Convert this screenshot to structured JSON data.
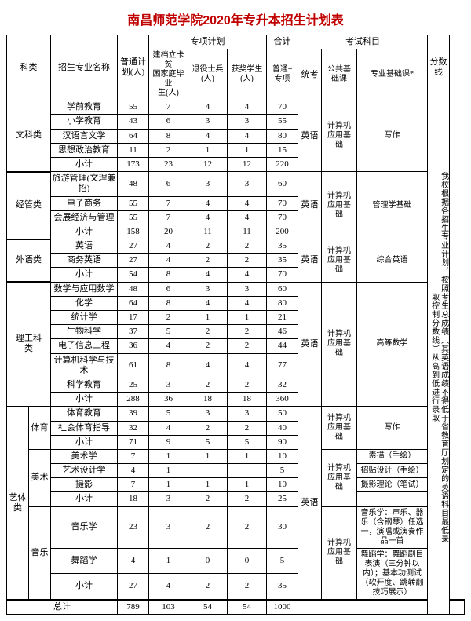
{
  "title": "南昌师范学院2020年专升本招生计划表",
  "headers": {
    "category": "科类",
    "major": "招生专业名称",
    "normal_plan": "普通计\n划(人)",
    "special_plan": "专项计划",
    "poor": "建档立卡贫\n困家庭毕业\n生(人)",
    "veteran": "退役士兵(人)",
    "award": "获奖学生(人)",
    "sum": "合计",
    "sum_sub": "普通+\n专项",
    "exam": "考试科目",
    "unified": "统考",
    "public": "公共基\n础课",
    "prof": "专业基础课*",
    "score": "分数线"
  },
  "score_note": "我校根据各招生专业计划，按照考生总成绩（其英语成绩不得低于省教育厅划定的英语科目最低录取控制分数线）从高到低进行录取",
  "subtotal_label": "小计",
  "total_label": "总计",
  "exam_unified": "英语",
  "exam_public": "计算机\n应用基\n础",
  "categories": [
    {
      "name": "文科类",
      "majors": [
        {
          "n": "学前教育",
          "v": [
            55,
            7,
            4,
            4,
            70
          ]
        },
        {
          "n": "小学教育",
          "v": [
            43,
            6,
            3,
            3,
            55
          ]
        },
        {
          "n": "汉语言文学",
          "v": [
            64,
            8,
            4,
            4,
            80
          ]
        },
        {
          "n": "思想政治教育",
          "v": [
            11,
            2,
            1,
            1,
            15
          ]
        }
      ],
      "subtotal": [
        173,
        23,
        12,
        12,
        220
      ],
      "exam_prof": "写作"
    },
    {
      "name": "经管类",
      "majors": [
        {
          "n": "旅游管理(文理兼招)",
          "v": [
            48,
            6,
            3,
            3,
            60
          ]
        },
        {
          "n": "电子商务",
          "v": [
            55,
            7,
            4,
            4,
            70
          ]
        },
        {
          "n": "会展经济与管理",
          "v": [
            55,
            7,
            4,
            4,
            70
          ]
        }
      ],
      "subtotal": [
        158,
        20,
        11,
        11,
        200
      ],
      "exam_prof": "管理学基础"
    },
    {
      "name": "外语类",
      "majors": [
        {
          "n": "英语",
          "v": [
            27,
            4,
            2,
            2,
            35
          ]
        },
        {
          "n": "商务英语",
          "v": [
            27,
            4,
            2,
            2,
            35
          ]
        }
      ],
      "subtotal": [
        54,
        8,
        4,
        4,
        70
      ],
      "exam_prof": "综合英语"
    },
    {
      "name": "理工科\n类",
      "majors": [
        {
          "n": "数学与应用数学",
          "v": [
            48,
            6,
            3,
            3,
            60
          ]
        },
        {
          "n": "化学",
          "v": [
            64,
            8,
            4,
            4,
            80
          ]
        },
        {
          "n": "统计学",
          "v": [
            17,
            2,
            1,
            1,
            21
          ]
        },
        {
          "n": "生物科学",
          "v": [
            37,
            5,
            2,
            2,
            46
          ]
        },
        {
          "n": "电子信息工程",
          "v": [
            36,
            4,
            2,
            2,
            44
          ]
        },
        {
          "n": "计算机科学与技术",
          "v": [
            61,
            8,
            4,
            4,
            77
          ]
        },
        {
          "n": "科学教育",
          "v": [
            25,
            3,
            2,
            2,
            32
          ]
        }
      ],
      "subtotal": [
        288,
        36,
        18,
        18,
        360
      ],
      "exam_prof": "高等数学"
    }
  ],
  "art": {
    "name": "艺体类",
    "groups": [
      {
        "sub": "体育",
        "majors": [
          {
            "n": "体育教育",
            "v": [
              39,
              5,
              3,
              3,
              50
            ]
          },
          {
            "n": "社会体育指导",
            "v": [
              32,
              4,
              2,
              2,
              40
            ]
          }
        ],
        "subtotal": [
          71,
          9,
          5,
          5,
          90
        ],
        "prof": "写作"
      },
      {
        "sub": "美术",
        "majors": [
          {
            "n": "美术学",
            "v": [
              7,
              1,
              1,
              1,
              10
            ],
            "prof": "素描（手绘）"
          },
          {
            "n": "艺术设计学",
            "v": [
              4,
              1,
              "",
              "",
              5
            ],
            "prof": "招贴设计（手绘）"
          },
          {
            "n": "摄影",
            "v": [
              7,
              1,
              1,
              1,
              10
            ],
            "prof": "摄影理论（笔试）"
          }
        ],
        "subtotal": [
          18,
          3,
          2,
          2,
          25
        ]
      },
      {
        "sub": "音乐",
        "majors": [
          {
            "n": "音乐学",
            "v": [
              23,
              3,
              2,
              2,
              30
            ]
          },
          {
            "n": "舞蹈学",
            "v": [
              4,
              1,
              0,
              0,
              5
            ]
          }
        ],
        "subtotal": [
          27,
          4,
          2,
          2,
          35
        ],
        "prof_music": "音乐学：声乐、器乐（含钢琴）任选一，演唱或演奏作品一首",
        "prof_dance": "舞蹈学：舞蹈剧目表演（三分钟以内）；基本功测试（软开度、跳转翻技巧展示）"
      }
    ]
  },
  "total": [
    789,
    103,
    54,
    54,
    1000
  ]
}
